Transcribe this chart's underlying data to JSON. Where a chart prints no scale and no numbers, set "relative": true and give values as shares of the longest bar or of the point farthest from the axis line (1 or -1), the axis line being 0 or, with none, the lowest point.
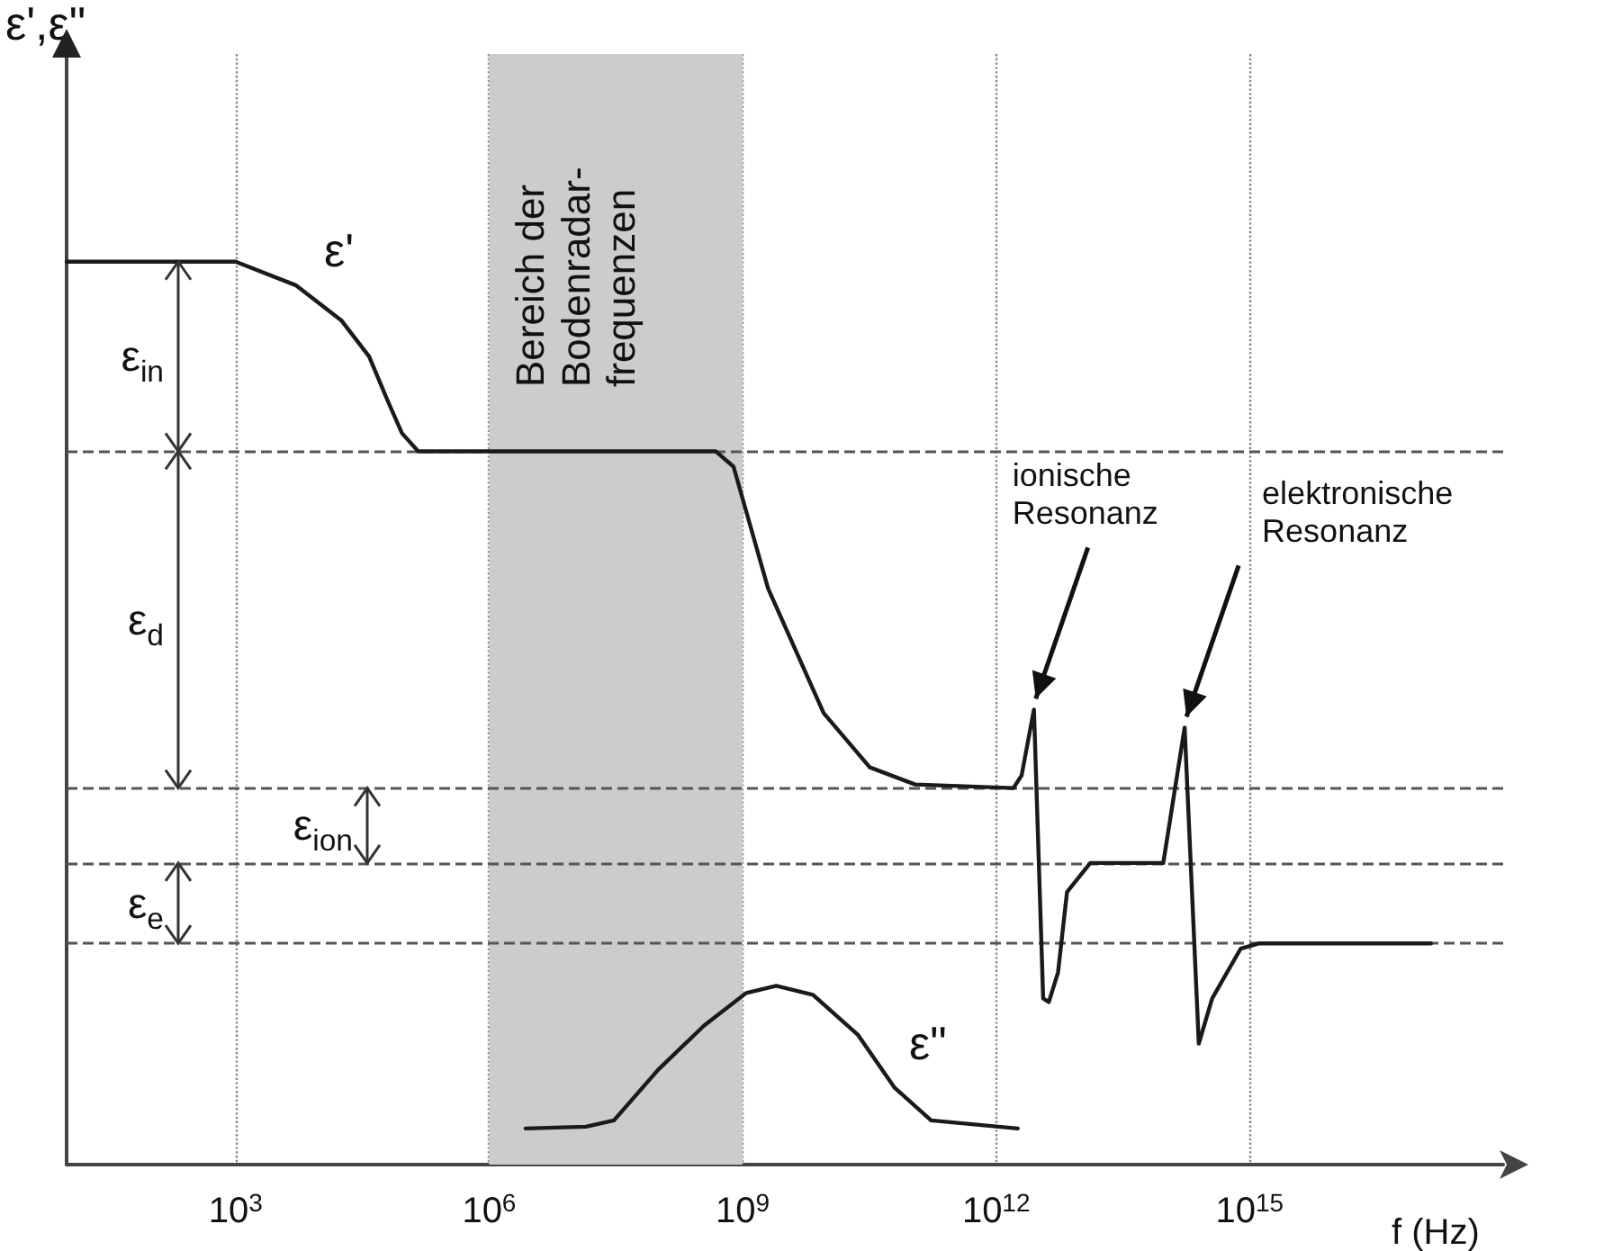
{
  "chart_data": {
    "type": "line",
    "relative": true,
    "xlabel": "f (Hz)",
    "ylabel": "ε',ε\"",
    "log": "x",
    "grid": "x",
    "legend": false,
    "marker": "none",
    "line_style": "solid",
    "xlim": [
      10,
      1e+18
    ],
    "xticks": [
      {
        "value": 1000,
        "label": "10$^{3}$"
      },
      {
        "value": 1000000,
        "label": "10$^{6}$"
      },
      {
        "value": 1000000000,
        "label": "10$^{9}$"
      },
      {
        "value": 1000000000000,
        "label": "10$^{12}$"
      },
      {
        "value": 1000000000000000,
        "label": "10$^{15}$"
      }
    ],
    "series": [
      {
        "name": "ε'",
        "color": "#1a1a1a",
        "x": [
          10,
          1000,
          5130,
          17800,
          38000,
          63000,
          93000,
          145000,
          480000000,
          780000000,
          2000000000,
          9100000000,
          32000000000,
          110000000000,
          1600000000000,
          2000000000000,
          2800000000000,
          3600000000000,
          4200000000000,
          5400000000000,
          6900000000000,
          13000000000000,
          95000000000000,
          170000000000000,
          250000000000000,
          360000000000000,
          780000000000000,
          1300000000000000,
          140000000000000000
        ],
        "values": [
          1,
          1,
          0.974,
          0.935,
          0.895,
          0.846,
          0.81,
          0.79,
          0.79,
          0.773,
          0.638,
          0.5,
          0.44,
          0.421,
          0.417,
          0.431,
          0.504,
          0.184,
          0.18,
          0.213,
          0.302,
          0.334,
          0.334,
          0.484,
          0.134,
          0.184,
          0.239,
          0.245,
          0.245
        ]
      },
      {
        "name": "ε\"",
        "color": "#1a1a1a",
        "x": [
          2700000,
          14000000,
          30000000,
          100000000,
          350000000,
          1100000000,
          2500000000,
          6800000000,
          23000000000,
          63000000000,
          170000000000,
          1800000000000
        ],
        "values": [
          0.04,
          0.042,
          0.049,
          0.105,
          0.154,
          0.19,
          0.198,
          0.188,
          0.144,
          0.085,
          0.049,
          0.04
        ]
      }
    ],
    "ref_lines": [
      {
        "axis": "y",
        "value": 0.79,
        "line_style": "dashed",
        "color": "#555555"
      },
      {
        "axis": "y",
        "value": 0.417,
        "line_style": "dashed",
        "color": "#555555"
      },
      {
        "axis": "y",
        "value": 0.334,
        "line_style": "dashed",
        "color": "#555555"
      },
      {
        "axis": "y",
        "value": 0.245,
        "line_style": "dashed",
        "color": "#555555"
      }
    ],
    "bands": [
      {
        "axis": "x",
        "from": 1000000,
        "to": 1000000000,
        "label": "Bereich der\nBodenradar-\nfrequenzen",
        "color": "#cccccc"
      }
    ],
    "annotations": [
      "ε$_{in}$",
      "ε$_{d}$",
      "ε$_{ion}$",
      "ε$_{e}$",
      {
        "text": "ionische\nResonanz",
        "x": 2800000000000,
        "y": 0.504
      },
      {
        "text": "elektronische\nResonanz",
        "x": 170000000000000,
        "y": 0.484
      }
    ]
  }
}
